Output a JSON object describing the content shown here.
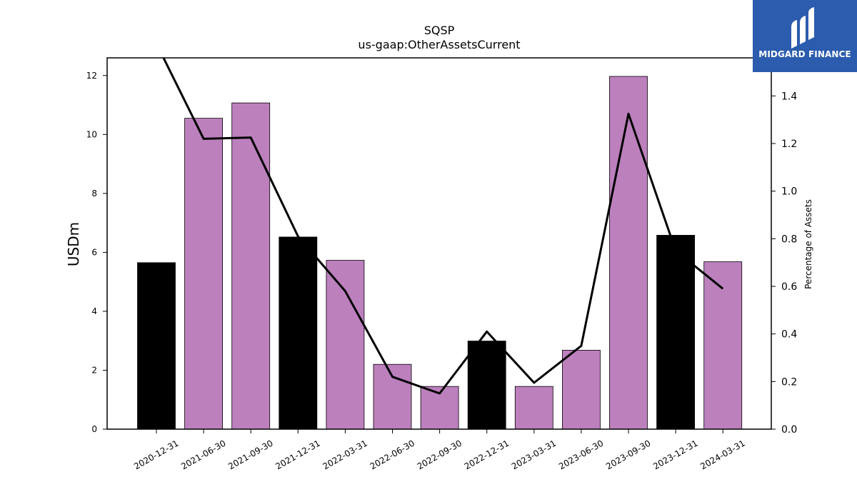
{
  "chart_data": {
    "type": "bar",
    "title": "SQSP",
    "subtitle": "us-gaap:OtherAssetsCurrent",
    "ylabel": "USDm",
    "y2label": "Percentage of Assets",
    "ylim": [
      0,
      12.6
    ],
    "y2lim": [
      0,
      1.56
    ],
    "yticks": [
      "0",
      "2",
      "4",
      "6",
      "8",
      "10",
      "12"
    ],
    "y2ticks": [
      "0.0",
      "0.2",
      "0.4",
      "0.6",
      "0.8",
      "1.0",
      "1.2",
      "1.4"
    ],
    "categories": [
      "2020-12-31",
      "2021-06-30",
      "2021-09-30",
      "2021-12-31",
      "2022-03-31",
      "2022-06-30",
      "2022-09-30",
      "2022-12-31",
      "2023-03-31",
      "2023-06-30",
      "2023-09-30",
      "2023-12-31",
      "2024-03-31"
    ],
    "values": [
      5.65,
      10.55,
      11.07,
      6.52,
      5.73,
      2.2,
      1.45,
      2.99,
      1.45,
      2.68,
      11.97,
      6.58,
      5.68
    ],
    "bar_colors": [
      "#000000",
      "#bc80bd",
      "#bc80bd",
      "#000000",
      "#bc80bd",
      "#bc80bd",
      "#bc80bd",
      "#000000",
      "#bc80bd",
      "#bc80bd",
      "#bc80bd",
      "#000000",
      "#bc80bd"
    ],
    "line_series": {
      "axis": "secondary",
      "values": [
        1.62,
        1.22,
        1.225,
        0.81,
        0.58,
        0.22,
        0.15,
        0.41,
        0.195,
        0.35,
        1.325,
        0.75,
        0.59
      ]
    }
  },
  "logo": {
    "text": "MIDGARD FINANCE",
    "background": "#2b5cad"
  }
}
